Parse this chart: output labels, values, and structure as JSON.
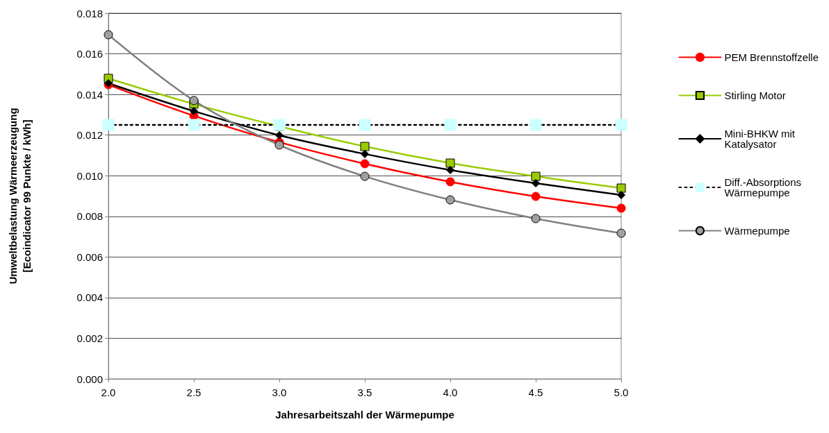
{
  "chart_data": {
    "type": "line",
    "xlabel": "Jahresarbeitszahl der Wärmepumpe",
    "ylabel": "Umweltbelastung Wärmeerzeugung\n[Ecoindicator 99 Punkte / kWh]",
    "x": [
      2.0,
      2.5,
      3.0,
      3.5,
      4.0,
      4.5,
      5.0
    ],
    "xlim": [
      2.0,
      5.0
    ],
    "xticks": [
      {
        "value": 2,
        "label": "2.0"
      },
      2.5,
      {
        "value": 3,
        "label": "3.0"
      },
      3.5,
      {
        "value": 4,
        "label": "4.0"
      },
      4.5,
      {
        "value": 5,
        "label": "5.0"
      }
    ],
    "ylim": [
      0,
      0.018
    ],
    "yticks": [
      {
        "value": 0,
        "label": "0.000"
      },
      0.002,
      0.004,
      0.006,
      0.008,
      {
        "value": 0.01,
        "label": "0.010"
      },
      0.012,
      0.014,
      0.016,
      0.018
    ],
    "grid": "y",
    "legend": "right",
    "series": [
      {
        "name": "PEM Brennstoffzelle",
        "color": "#ff0000",
        "marker": "circle",
        "values": [
          0.01448,
          0.01295,
          0.01165,
          0.01059,
          0.0097,
          0.00898,
          0.0084
        ]
      },
      {
        "name": "Stirling Motor",
        "color": "#99cc00",
        "marker": "square",
        "values": [
          0.01479,
          0.01353,
          0.01243,
          0.01144,
          0.01062,
          0.00997,
          0.00939
        ]
      },
      {
        "name": "Mini-BHKW mit Katalysator",
        "color": "#000000",
        "marker": "diamond",
        "values": [
          0.01455,
          0.01318,
          0.01199,
          0.01107,
          0.01028,
          0.00963,
          0.00905
        ]
      },
      {
        "name": "Diff.-Absorptions Wärmepumpe",
        "color": "#000000",
        "marker": "cross",
        "line_style": "dotted",
        "values": [
          0.0125,
          0.0125,
          0.0125,
          0.0125,
          0.0125,
          0.0125,
          0.0125
        ]
      },
      {
        "name": "Wärmepumpe",
        "color": "#808080",
        "marker": "circle",
        "values": [
          0.01694,
          0.0137,
          0.01151,
          0.00997,
          0.00881,
          0.00789,
          0.00717
        ]
      }
    ]
  }
}
